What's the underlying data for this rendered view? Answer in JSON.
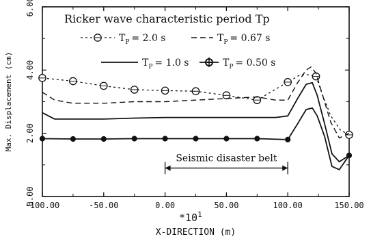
{
  "chart_data": {
    "type": "line",
    "title": "Ricker wave characteristic period Tp",
    "xlabel": "X-DIRECTION (m)",
    "x_multiplier": "*10",
    "x_multiplier_exp": "1",
    "ylabel": "Max. Displacement (cm)",
    "xlim": [
      -100,
      150
    ],
    "ylim": [
      0,
      6
    ],
    "x_ticks": [
      "-100.00",
      "-50.00",
      "0.00",
      "50.00",
      "100.00",
      "150.00"
    ],
    "y_ticks": [
      "0.00",
      "2.00",
      "4.00",
      "6.00"
    ],
    "legend_placement": "top-left",
    "annotation": {
      "label": "Seismic disaster belt",
      "x_range": [
        0,
        100
      ],
      "y": 0.9
    },
    "series": [
      {
        "name": "T_P = 2.0 s",
        "style": "dashed-circles",
        "x": [
          -100,
          -75,
          -50,
          -25,
          0,
          25,
          50,
          75,
          100,
          110,
          118,
          123,
          127,
          135,
          143,
          150
        ],
        "y": [
          3.75,
          3.65,
          3.5,
          3.38,
          3.35,
          3.33,
          3.2,
          3.05,
          3.62,
          3.85,
          3.85,
          3.8,
          3.35,
          2.55,
          2.1,
          1.95
        ]
      },
      {
        "name": "T_P = 0.67 s",
        "style": "long-dashed",
        "x": [
          -100,
          -90,
          -75,
          -50,
          -25,
          0,
          25,
          50,
          75,
          90,
          100,
          108,
          115,
          119,
          123,
          128,
          135,
          142,
          150
        ],
        "y": [
          3.3,
          3.05,
          2.95,
          2.95,
          3.0,
          3.0,
          3.05,
          3.1,
          3.15,
          3.05,
          3.05,
          3.6,
          4.0,
          4.1,
          3.9,
          3.25,
          2.35,
          1.85,
          2.0
        ]
      },
      {
        "name": "T_P = 1.0 s",
        "style": "solid",
        "x": [
          -100,
          -90,
          -75,
          -50,
          -25,
          0,
          25,
          50,
          75,
          90,
          100,
          108,
          115,
          120,
          124,
          130,
          136,
          142,
          150
        ],
        "y": [
          2.65,
          2.45,
          2.45,
          2.45,
          2.48,
          2.5,
          2.5,
          2.5,
          2.5,
          2.5,
          2.55,
          3.1,
          3.55,
          3.6,
          3.2,
          2.3,
          1.35,
          1.1,
          1.3
        ]
      },
      {
        "name": "T_P = 0.50 s",
        "style": "solid-filled-circles",
        "x": [
          -100,
          -75,
          -50,
          -25,
          0,
          25,
          50,
          75,
          100,
          108,
          115,
          120,
          124,
          130,
          136,
          142,
          150
        ],
        "y": [
          1.83,
          1.82,
          1.82,
          1.83,
          1.83,
          1.83,
          1.83,
          1.83,
          1.8,
          2.3,
          2.75,
          2.8,
          2.55,
          1.9,
          0.95,
          0.85,
          1.3
        ]
      }
    ],
    "legend": [
      {
        "label": "T",
        "sub": "P",
        "rest": "= 2.0 s",
        "series": 0
      },
      {
        "label": "T",
        "sub": "P",
        "rest": "= 0.67 s",
        "series": 1
      },
      {
        "label": "T",
        "sub": "P",
        "rest": "= 1.0 s",
        "series": 2
      },
      {
        "label": "T",
        "sub": "P",
        "rest": "= 0.50 s",
        "series": 3
      }
    ]
  }
}
